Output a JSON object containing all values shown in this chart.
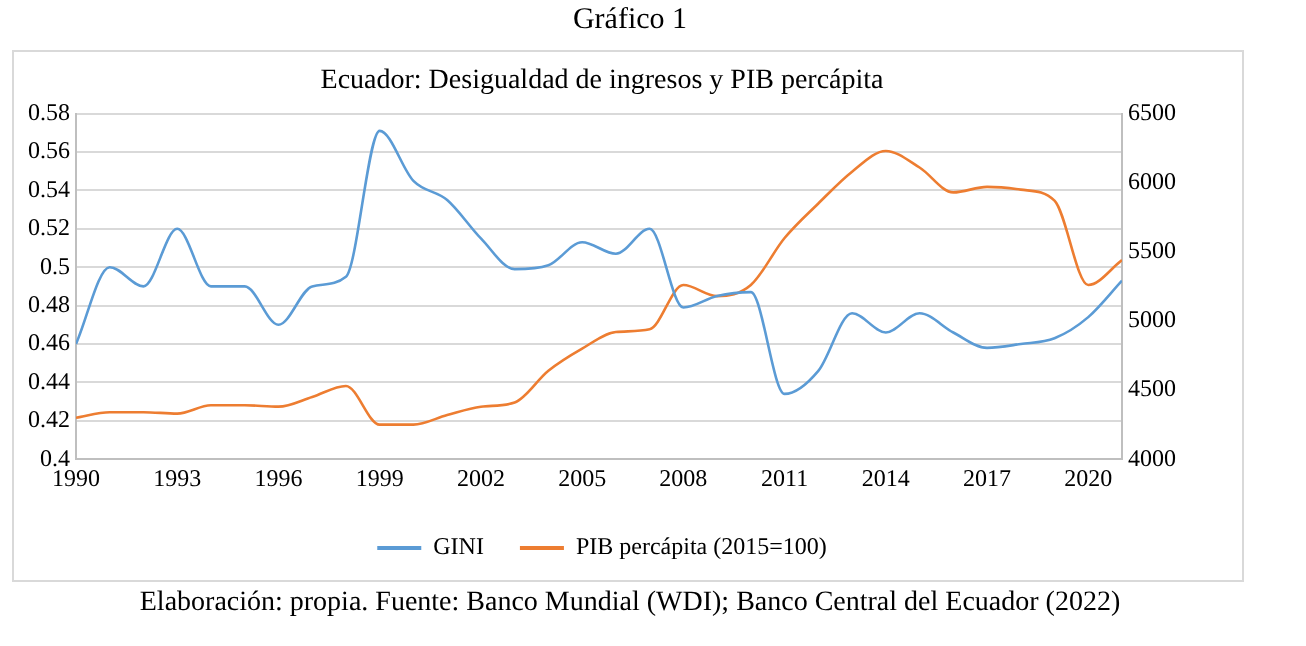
{
  "chart_data": {
    "type": "line",
    "title": "Gráfico 1",
    "subtitle": "Ecuador: Desigualdad de ingresos y PIB percápita",
    "x": [
      1990,
      1991,
      1992,
      1993,
      1994,
      1995,
      1996,
      1997,
      1998,
      1999,
      2000,
      2001,
      2002,
      2003,
      2004,
      2005,
      2006,
      2007,
      2008,
      2009,
      2010,
      2011,
      2012,
      2013,
      2014,
      2015,
      2016,
      2017,
      2018,
      2019,
      2020,
      2021
    ],
    "series": [
      {
        "name": "GINI",
        "color": "#5b9bd5",
        "values": [
          0.46,
          0.5,
          0.49,
          0.52,
          0.49,
          0.49,
          0.47,
          0.49,
          0.495,
          0.571,
          0.545,
          0.535,
          0.515,
          0.499,
          0.501,
          0.513,
          0.507,
          0.52,
          0.479,
          0.485,
          0.487,
          0.434,
          0.446,
          0.476,
          0.466,
          0.476,
          0.466,
          0.458,
          0.46,
          0.463,
          0.474,
          0.493
        ]
      },
      {
        "name": "PIB percápita (2015=100)",
        "color": "#ed7d31",
        "axis": "y2",
        "values": [
          4300,
          4340,
          4340,
          4330,
          4390,
          4390,
          4380,
          4450,
          4530,
          4250,
          4250,
          4320,
          4380,
          4410,
          4640,
          4800,
          4920,
          4940,
          5260,
          5180,
          5260,
          5600,
          5850,
          6080,
          6230,
          6110,
          5930,
          5970,
          5950,
          5870,
          5260,
          5440
        ]
      }
    ],
    "xlim": [
      1990,
      2021
    ],
    "xticks": [
      1990,
      1993,
      1996,
      1999,
      2002,
      2005,
      2008,
      2011,
      2014,
      2017,
      2020
    ],
    "ylim": [
      0.4,
      0.58
    ],
    "yticks": [
      0.4,
      0.42,
      0.44,
      0.46,
      0.48,
      0.5,
      0.52,
      0.54,
      0.56,
      0.58
    ],
    "y2lim": [
      4000,
      6500
    ],
    "y2ticks": [
      4000,
      4500,
      5000,
      5500,
      6000,
      6500
    ],
    "grid": "y",
    "legend": "bottom",
    "marker": "none",
    "line_style": "solid",
    "annotations": [
      "Elaboración: propia. Fuente: Banco Mundial (WDI); Banco Central del Ecuador (2022)"
    ]
  }
}
